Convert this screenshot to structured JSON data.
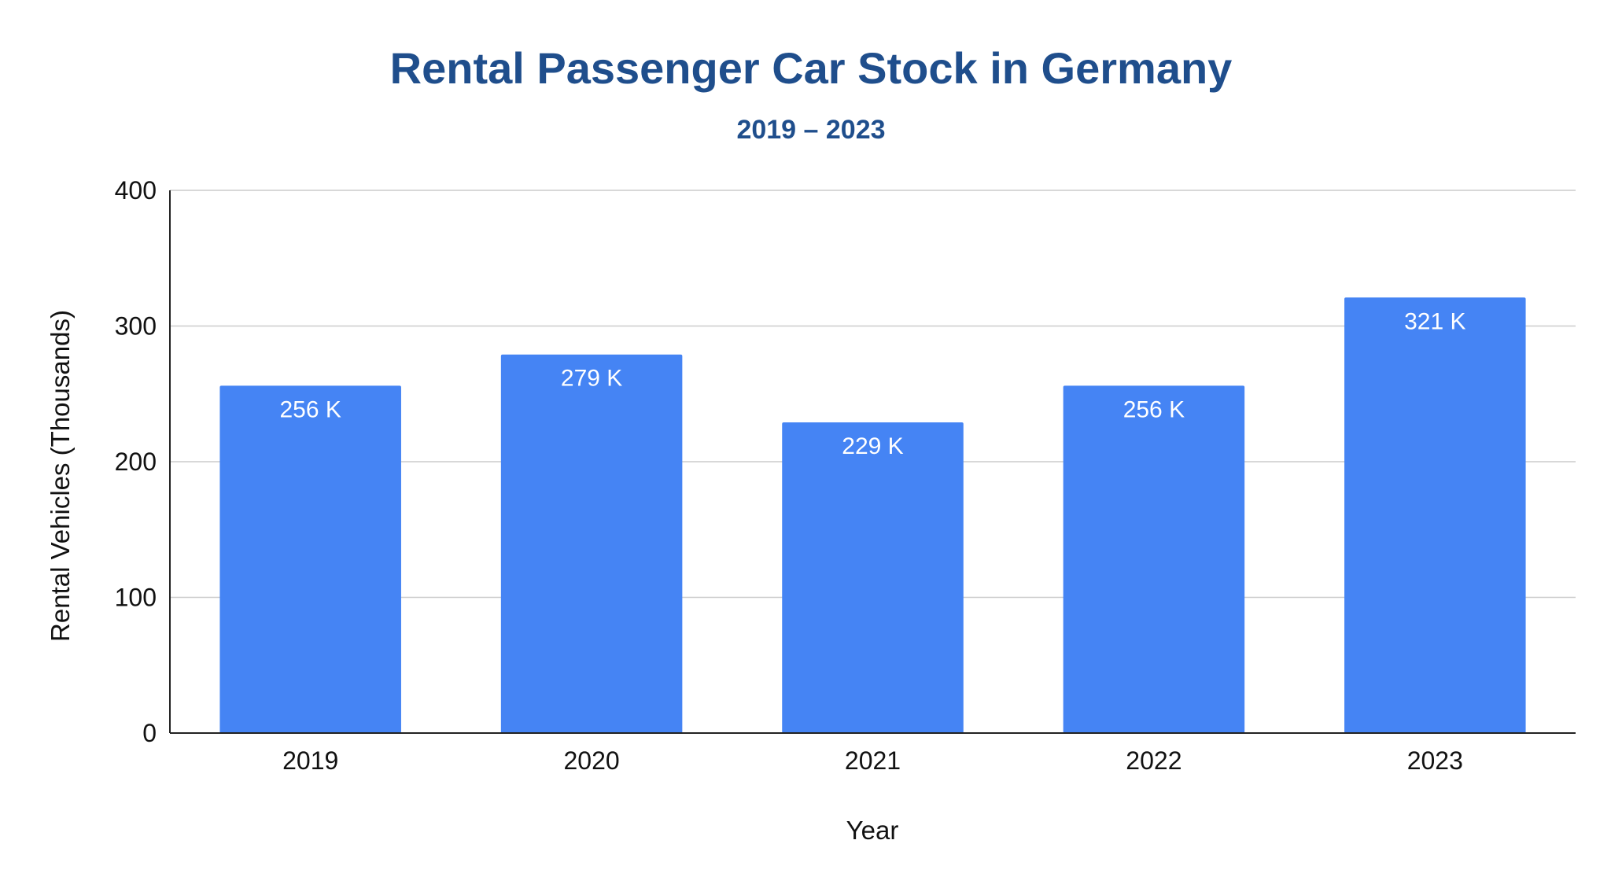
{
  "chart_data": {
    "type": "bar",
    "title": "Rental Passenger Car Stock in Germany",
    "subtitle": "2019 – 2023",
    "xlabel": "Year",
    "ylabel": "Rental Vehicles (Thousands)",
    "categories": [
      "2019",
      "2020",
      "2021",
      "2022",
      "2023"
    ],
    "values": [
      256,
      279,
      229,
      256,
      321
    ],
    "data_labels": [
      "256 K",
      "279 K",
      "229 K",
      "256 K",
      "321 K"
    ],
    "ylim": [
      0,
      400
    ],
    "yticks": [
      "0",
      "100",
      "200",
      "300",
      "400"
    ],
    "grid": true,
    "legend": "none",
    "bar_color": "#4584f4",
    "title_color": "#1f4e8c"
  }
}
